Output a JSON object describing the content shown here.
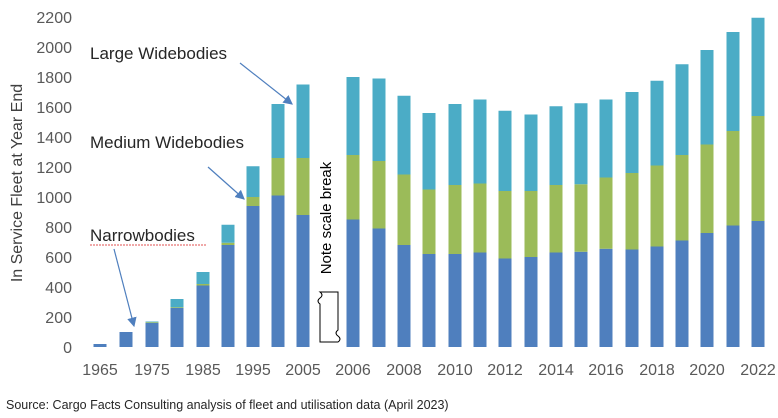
{
  "chart_data": {
    "type": "bar",
    "stacked": true,
    "ylabel": "In Service Fleet at Year End",
    "ylim": [
      0,
      2200
    ],
    "ytick_step": 200,
    "grid": false,
    "legend": "none",
    "categories": [
      "1965",
      "1970",
      "1975",
      "1980",
      "1985",
      "1990",
      "1995",
      "2000",
      "2005",
      "2006",
      "2007",
      "2008",
      "2009",
      "2010",
      "2011",
      "2012",
      "2013",
      "2014",
      "2015",
      "2016",
      "2017",
      "2018",
      "2019",
      "2020",
      "2021",
      "2022"
    ],
    "x_tick_labels": [
      "1965",
      "",
      "1975",
      "",
      "1985",
      "",
      "1995",
      "",
      "2005",
      "2006",
      "",
      "2008",
      "",
      "2010",
      "",
      "2012",
      "",
      "2014",
      "",
      "2016",
      "",
      "2018",
      "",
      "2020",
      "",
      "2022"
    ],
    "scale_break_note": "Note scale break",
    "series": [
      {
        "name": "Narrowbodies",
        "color": "#4f7fbe",
        "values": [
          20,
          100,
          160,
          260,
          410,
          680,
          940,
          1010,
          880,
          850,
          790,
          680,
          620,
          620,
          630,
          590,
          600,
          630,
          635,
          655,
          650,
          670,
          710,
          760,
          810,
          840
        ]
      },
      {
        "name": "Medium Widebodies",
        "color": "#9bbb59",
        "values": [
          0,
          0,
          5,
          5,
          10,
          15,
          60,
          250,
          380,
          430,
          450,
          470,
          430,
          460,
          460,
          450,
          440,
          450,
          450,
          475,
          510,
          540,
          570,
          590,
          630,
          700
        ]
      },
      {
        "name": "Large Widebodies",
        "color": "#4bacc6",
        "values": [
          0,
          0,
          5,
          55,
          80,
          120,
          205,
          360,
          490,
          520,
          550,
          525,
          510,
          540,
          560,
          535,
          510,
          525,
          540,
          520,
          540,
          565,
          605,
          630,
          660,
          655
        ]
      }
    ],
    "annotations": [
      "Large Widebodies",
      "Medium Widebodies",
      "Narrowbodies"
    ]
  },
  "source": "Source: Cargo Facts Consulting analysis of fleet and utilisation data (April 2023)"
}
